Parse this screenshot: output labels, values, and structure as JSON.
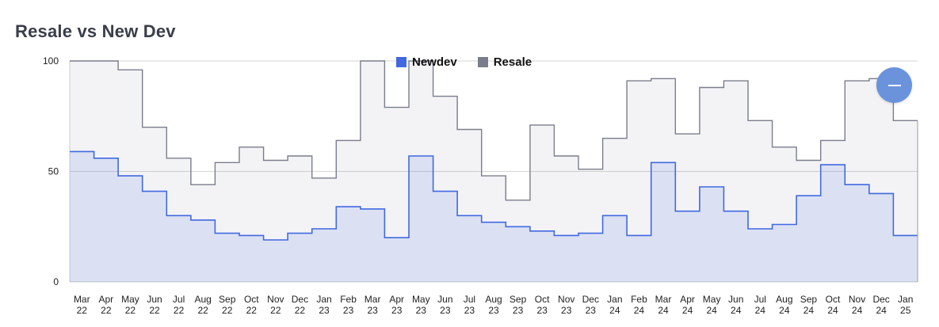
{
  "title": "Resale vs New Dev",
  "collapse_icon": "minus-icon",
  "chart_data": {
    "type": "line",
    "step": true,
    "title": "Resale vs New Dev",
    "xlabel": "",
    "ylabel": "",
    "ylim": [
      0,
      100
    ],
    "yticks": [
      "0",
      "50",
      "100"
    ],
    "grid": true,
    "legend_position": "top-center",
    "categories": [
      "Mar 22",
      "Apr 22",
      "May 22",
      "Jun 22",
      "Jul 22",
      "Aug 22",
      "Sep 22",
      "Oct 22",
      "Nov 22",
      "Dec 22",
      "Jan 23",
      "Feb 23",
      "Mar 23",
      "Apr 23",
      "May 23",
      "Jun 23",
      "Jul 23",
      "Aug 23",
      "Sep 23",
      "Oct 23",
      "Nov 23",
      "Dec 23",
      "Jan 24",
      "Feb 24",
      "Mar 24",
      "Apr 24",
      "May 24",
      "Jun 24",
      "Jul 24",
      "Aug 24",
      "Sep 24",
      "Oct 24",
      "Nov 24",
      "Dec 24",
      "Jan 25"
    ],
    "tick_labels": [
      [
        "Mar",
        "22"
      ],
      [
        "Apr",
        "22"
      ],
      [
        "May",
        "22"
      ],
      [
        "Jun",
        "22"
      ],
      [
        "Jul",
        "22"
      ],
      [
        "Aug",
        "22"
      ],
      [
        "Sep",
        "22"
      ],
      [
        "Oct",
        "22"
      ],
      [
        "Nov",
        "22"
      ],
      [
        "Dec",
        "22"
      ],
      [
        "Jan",
        "23"
      ],
      [
        "Feb",
        "23"
      ],
      [
        "Mar",
        "23"
      ],
      [
        "Apr",
        "23"
      ],
      [
        "May",
        "23"
      ],
      [
        "Jun",
        "23"
      ],
      [
        "Jul",
        "23"
      ],
      [
        "Aug",
        "23"
      ],
      [
        "Sep",
        "23"
      ],
      [
        "Oct",
        "23"
      ],
      [
        "Nov",
        "23"
      ],
      [
        "Dec",
        "23"
      ],
      [
        "Jan",
        "24"
      ],
      [
        "Feb",
        "24"
      ],
      [
        "Mar",
        "24"
      ],
      [
        "Apr",
        "24"
      ],
      [
        "May",
        "24"
      ],
      [
        "Jun",
        "24"
      ],
      [
        "Jul",
        "24"
      ],
      [
        "Aug",
        "24"
      ],
      [
        "Sep",
        "24"
      ],
      [
        "Oct",
        "24"
      ],
      [
        "Nov",
        "24"
      ],
      [
        "Dec",
        "24"
      ],
      [
        "Jan",
        "25"
      ]
    ],
    "series": [
      {
        "name": "Newdev",
        "color": "#4169e1",
        "values": [
          59,
          56,
          48,
          41,
          30,
          28,
          22,
          21,
          19,
          22,
          24,
          34,
          33,
          20,
          57,
          41,
          30,
          27,
          25,
          23,
          21,
          22,
          30,
          21,
          54,
          32,
          43,
          32,
          24,
          26,
          39,
          53,
          44,
          40,
          21
        ]
      },
      {
        "name": "Resale",
        "color": "#7a7d8c",
        "values": [
          100,
          100,
          96,
          70,
          56,
          44,
          54,
          61,
          55,
          57,
          47,
          64,
          100,
          79,
          100,
          84,
          69,
          48,
          37,
          71,
          57,
          51,
          65,
          91,
          92,
          67,
          88,
          91,
          73,
          61,
          55,
          64,
          91,
          92,
          73
        ]
      }
    ]
  }
}
